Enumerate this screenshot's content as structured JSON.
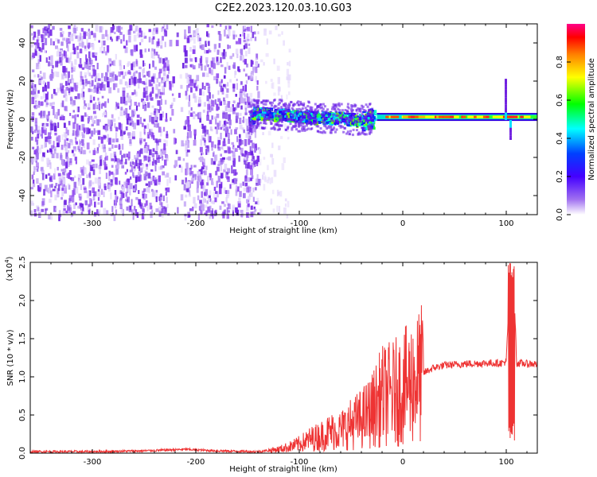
{
  "title": "C2E2.2023.120.03.10.G03",
  "chart_data": [
    {
      "type": "heatmap",
      "xlabel": "Height of straight line (km)",
      "ylabel": "Frequency (Hz)",
      "xlim": [
        -360,
        130
      ],
      "ylim": [
        -50,
        50
      ],
      "xticks": [
        -300,
        -200,
        -100,
        0,
        100
      ],
      "yticks": [
        -40,
        -20,
        0,
        20,
        40
      ],
      "colorbar": {
        "label": "Normalized spectral amplitude",
        "range": [
          0.0,
          1.0
        ],
        "ticks": [
          0.0,
          0.2,
          0.4,
          0.6,
          0.8
        ],
        "colors": [
          "#ffffff",
          "#8a2be2",
          "#0000ff",
          "#00ffff",
          "#00ff00",
          "#ffff00",
          "#ff8000",
          "#ff0000",
          "#ff0080"
        ]
      },
      "features": {
        "noise_region_x": [
          -360,
          -140
        ],
        "noise_gap_x": [
          -228,
          -212
        ],
        "line_segments": [
          {
            "x": -145,
            "freq": 4
          },
          {
            "x": -100,
            "freq": 2
          },
          {
            "x": -60,
            "freq": 1
          },
          {
            "x": -40,
            "freq": 0
          },
          {
            "x": -30,
            "freq": 1
          },
          {
            "x": 0,
            "freq": 1
          },
          {
            "x": 100,
            "freq": 1
          },
          {
            "x": 130,
            "freq": 1
          }
        ],
        "strong_line_x": [
          -25,
          130
        ],
        "spike_x": 100
      }
    },
    {
      "type": "line",
      "xlabel": "Height of straight line (km)",
      "ylabel": "SNR (10 * v/v)",
      "y_multiplier": "(x10^4)",
      "xlim": [
        -360,
        130
      ],
      "ylim": [
        0,
        2.5
      ],
      "xticks": [
        -300,
        -200,
        -100,
        0,
        100
      ],
      "yticks": [
        0.0,
        0.5,
        1.0,
        1.5,
        2.0,
        2.5
      ],
      "color": "#ee3333",
      "x": [
        -360,
        -300,
        -250,
        -210,
        -180,
        -140,
        -120,
        -110,
        -100,
        -90,
        -80,
        -70,
        -60,
        -50,
        -40,
        -30,
        -20,
        -10,
        0,
        10,
        20,
        30,
        40,
        60,
        80,
        95,
        100,
        103,
        105,
        107,
        110,
        120,
        130
      ],
      "y": [
        0.02,
        0.02,
        0.03,
        0.05,
        0.03,
        0.02,
        0.05,
        0.08,
        0.12,
        0.18,
        0.22,
        0.28,
        0.3,
        0.38,
        0.45,
        0.55,
        0.75,
        0.78,
        0.85,
        0.95,
        1.05,
        1.12,
        1.15,
        1.17,
        1.18,
        1.18,
        1.2,
        2.1,
        0.2,
        2.4,
        1.18,
        1.17,
        1.17
      ]
    }
  ]
}
